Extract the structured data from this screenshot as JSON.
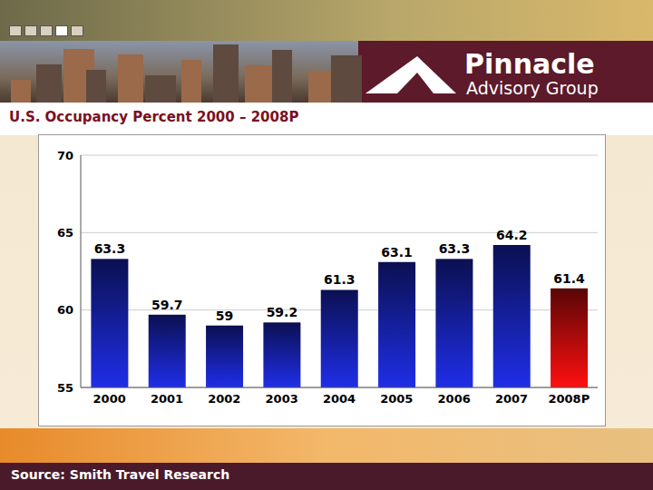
{
  "header": {
    "logo_name": "Pinnacle",
    "logo_subtitle": "Advisory Group"
  },
  "chart_data": {
    "type": "bar",
    "title": "U.S. Occupancy Percent 2000 – 2008P",
    "categories": [
      "2000",
      "2001",
      "2002",
      "2003",
      "2004",
      "2005",
      "2006",
      "2007",
      "2008P"
    ],
    "values": [
      63.3,
      59.7,
      59,
      59.2,
      61.3,
      63.1,
      63.3,
      64.2,
      61.4
    ],
    "colors": [
      "#1f2ee8",
      "#1f2ee8",
      "#1f2ee8",
      "#1f2ee8",
      "#1f2ee8",
      "#1f2ee8",
      "#1f2ee8",
      "#1f2ee8",
      "#ff1010"
    ],
    "ylim": [
      55,
      70
    ],
    "yticks": [
      55,
      60,
      65,
      70
    ],
    "grid": true,
    "data_labels": true,
    "annotations": [
      "Source: Smith Travel Research"
    ]
  }
}
